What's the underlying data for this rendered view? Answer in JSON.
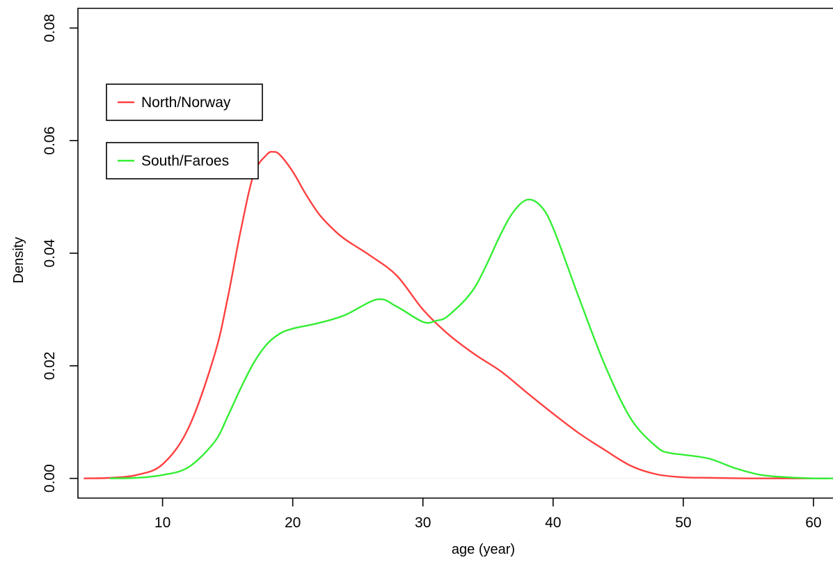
{
  "chart_data": {
    "type": "line",
    "title": "",
    "xlabel": "age (year)",
    "ylabel": "Density",
    "xlim": [
      3.5,
      61.5
    ],
    "ylim": [
      -0.0035,
      0.0835
    ],
    "xticks": [
      10,
      20,
      30,
      40,
      50,
      60
    ],
    "yticks": [
      0.0,
      0.02,
      0.04,
      0.06,
      0.08
    ],
    "xtick_labels": [
      "10",
      "20",
      "30",
      "40",
      "50",
      "60"
    ],
    "ytick_labels": [
      "0.00",
      "0.02",
      "0.04",
      "0.06",
      "0.08"
    ],
    "grid": false,
    "legend_position": "top-left",
    "series": [
      {
        "name": "North/Norway",
        "color": "#ff4040",
        "x": [
          4,
          6,
          8,
          10,
          12,
          14,
          15,
          16,
          17,
          18,
          18.5,
          19,
          20,
          21,
          22,
          23,
          24,
          26,
          28,
          30,
          32,
          34,
          36,
          38,
          40,
          42,
          44,
          46,
          48,
          50,
          52,
          55,
          58,
          61
        ],
        "y": [
          0.0,
          0.0001,
          0.0006,
          0.0025,
          0.009,
          0.022,
          0.032,
          0.044,
          0.054,
          0.0575,
          0.058,
          0.0575,
          0.0545,
          0.0505,
          0.047,
          0.0445,
          0.0425,
          0.0395,
          0.036,
          0.03,
          0.0255,
          0.022,
          0.019,
          0.0152,
          0.0115,
          0.008,
          0.005,
          0.0022,
          0.0007,
          0.0002,
          0.0001,
          0.0,
          0.0,
          0.0
        ]
      },
      {
        "name": "South/Faroes",
        "color": "#33ee33",
        "x": [
          6,
          8,
          10,
          12,
          14,
          15,
          16,
          17,
          18,
          19,
          20,
          22,
          24,
          26.5,
          28,
          30,
          31,
          32,
          34,
          36,
          37,
          38,
          39,
          40,
          42,
          44,
          46,
          48,
          49,
          50,
          52,
          54,
          56,
          58,
          60,
          61.5
        ],
        "y": [
          0.0,
          0.0001,
          0.0006,
          0.002,
          0.0065,
          0.011,
          0.016,
          0.0205,
          0.0238,
          0.0257,
          0.0266,
          0.0276,
          0.029,
          0.0318,
          0.0305,
          0.0278,
          0.028,
          0.029,
          0.034,
          0.0435,
          0.0475,
          0.0495,
          0.0485,
          0.0445,
          0.032,
          0.02,
          0.0105,
          0.0055,
          0.0045,
          0.0042,
          0.0035,
          0.0018,
          0.0006,
          0.0002,
          0.0,
          0.0
        ]
      }
    ]
  }
}
